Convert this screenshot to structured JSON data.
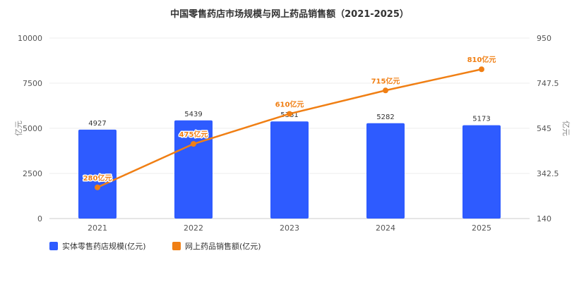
{
  "chart_data": {
    "type": "bar+line",
    "title": "中国零售药店市场规模与网上药品销售额（2021-2025）",
    "categories": [
      "2021",
      "2022",
      "2023",
      "2024",
      "2025"
    ],
    "y_left": {
      "label": "亿元",
      "ticks": [
        "0",
        "2500",
        "5000",
        "7500",
        "10000"
      ],
      "ylim": [
        0,
        10000
      ]
    },
    "y_right": {
      "label": "亿元",
      "ticks": [
        "140",
        "342.5",
        "545",
        "747.5",
        "950"
      ],
      "ylim": [
        140,
        950
      ]
    },
    "series": [
      {
        "name": "实体零售药店规模(亿元)",
        "type": "bar",
        "axis": "left",
        "color": "#2e5bff",
        "values": [
          4927,
          5439,
          5381,
          5282,
          5173
        ],
        "labels": [
          "4927",
          "5439",
          "5381",
          "5282",
          "5173"
        ]
      },
      {
        "name": "网上药品销售额(亿元)",
        "type": "line",
        "axis": "right",
        "color": "#f07f14",
        "values": [
          280,
          475,
          610,
          715,
          810
        ],
        "labels": [
          "280亿元",
          "475亿元",
          "610亿元",
          "715亿元",
          "810亿元"
        ]
      }
    ],
    "grid": true,
    "legend": "bottom-left"
  }
}
